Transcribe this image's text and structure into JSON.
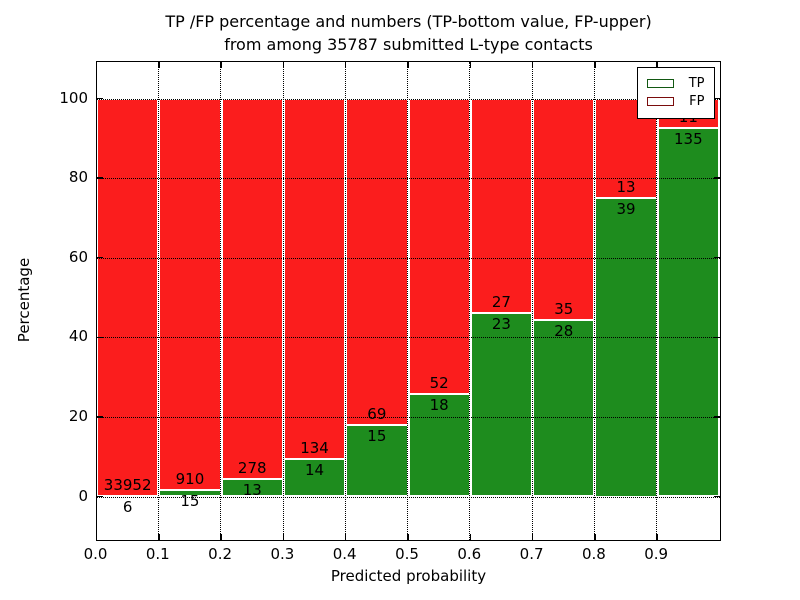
{
  "chart_data": {
    "type": "bar",
    "variant": "stacked-percentage",
    "title_line1": "TP /FP percentage and numbers (TP-bottom value, FP-upper)",
    "title_line2": "from among 35787 submitted L-type contacts",
    "total_submitted": 35787,
    "xlabel": "Predicted probability",
    "ylabel": "Percentage",
    "x_tick_labels": [
      "0.0",
      "0.1",
      "0.2",
      "0.3",
      "0.4",
      "0.5",
      "0.6",
      "0.7",
      "0.8",
      "0.9"
    ],
    "y_ticks": [
      0,
      20,
      40,
      60,
      80,
      100
    ],
    "xlim": [
      0.0,
      1.0
    ],
    "ylim": [
      -10.8,
      109.3
    ],
    "grid": "dotted",
    "categories": [
      "0.0-0.1",
      "0.1-0.2",
      "0.2-0.3",
      "0.3-0.4",
      "0.4-0.5",
      "0.5-0.6",
      "0.6-0.7",
      "0.7-0.8",
      "0.8-0.9",
      "0.9-1.0"
    ],
    "series": [
      {
        "name": "TP",
        "color": "#1e8c1e",
        "values": [
          6,
          15,
          13,
          14,
          15,
          18,
          23,
          28,
          39,
          135
        ]
      },
      {
        "name": "FP",
        "color": "#fb1d1d",
        "values": [
          33952,
          910,
          278,
          134,
          69,
          52,
          27,
          35,
          13,
          11
        ]
      }
    ],
    "tp_percent": [
      0.02,
      1.62,
      4.47,
      9.46,
      17.86,
      25.71,
      46.0,
      44.44,
      75.0,
      92.47
    ],
    "legend": {
      "position": "upper-right",
      "items": [
        {
          "label": "TP",
          "color": "#1e8c1e"
        },
        {
          "label": "FP",
          "color": "#fb1d1d"
        }
      ]
    }
  }
}
